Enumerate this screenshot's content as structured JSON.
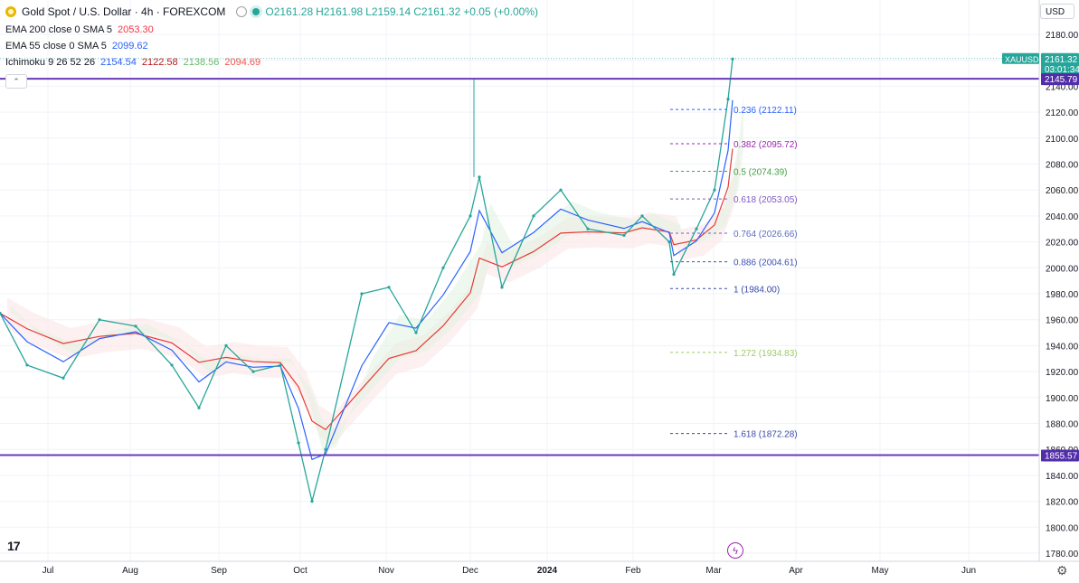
{
  "header": {
    "symbol": "Gold Spot / U.S. Dollar · 4h · FOREXCOM",
    "open": "O2161.28",
    "high": "H2161.98",
    "low": "L2159.14",
    "close": "C2161.32",
    "change": "+0.05 (+0.00%)",
    "currency": "USD"
  },
  "indicators": [
    {
      "label": "EMA 200 close 0 SMA 5",
      "values": [
        "2053.30"
      ],
      "color": "#f23645"
    },
    {
      "label": "EMA 55 close 0 SMA 5",
      "values": [
        "2099.62"
      ],
      "color": "#2962ff"
    },
    {
      "label": "Ichimoku 9 26 52 26",
      "values": [
        "2154.54",
        "2122.58",
        "2138.56",
        "2094.69"
      ],
      "colors": [
        "#2962ff",
        "#b71c1c",
        "#66bb6a",
        "#ef5350"
      ]
    }
  ],
  "price_axis": {
    "ticks": [
      "2180.00",
      "2160.00",
      "2140.00",
      "2120.00",
      "2100.00",
      "2080.00",
      "2060.00",
      "2040.00",
      "2020.00",
      "2000.00",
      "1980.00",
      "1960.00",
      "1940.00",
      "1920.00",
      "1900.00",
      "1880.00",
      "1860.00",
      "1840.00",
      "1820.00",
      "1800.00",
      "1780.00"
    ],
    "symbol_tag": "XAUUSD",
    "last_price": "2161.32",
    "countdown": "03:01:34",
    "upper_line_label": "2145.79",
    "lower_line_label": "1855.57"
  },
  "time_axis": [
    "Jul",
    "Aug",
    "Sep",
    "Oct",
    "Nov",
    "Dec",
    "2024",
    "Feb",
    "Mar",
    "Apr",
    "May",
    "Jun"
  ],
  "fib_levels": [
    {
      "label": "0.236 (2122.11)",
      "price": 2122.11,
      "color": "#2962ff"
    },
    {
      "label": "0.382 (2095.72)",
      "price": 2095.72,
      "color": "#9c27b0"
    },
    {
      "label": "0.5 (2074.39)",
      "price": 2074.39,
      "color": "#43a047"
    },
    {
      "label": "0.618 (2053.05)",
      "price": 2053.05,
      "color": "#7e57c2"
    },
    {
      "label": "0.764 (2026.66)",
      "price": 2026.66,
      "color": "#5c6bc0"
    },
    {
      "label": "0.886 (2004.61)",
      "price": 2004.61,
      "color": "#3f51b5"
    },
    {
      "label": "1 (1984.00)",
      "price": 1984.0,
      "color": "#3949ab"
    },
    {
      "label": "1.272 (1934.83)",
      "price": 1934.83,
      "color": "#9ccc65"
    },
    {
      "label": "1.618 (1872.28)",
      "price": 1872.28,
      "color": "#3949ab"
    }
  ],
  "horizontal_lines": [
    {
      "price": 2145.79,
      "color": "#673ab7"
    },
    {
      "price": 1855.57,
      "color": "#673ab7"
    }
  ],
  "chart_data": {
    "type": "line",
    "title": "Gold Spot / U.S. Dollar · 4h · FOREXCOM",
    "ylim": [
      1774,
      2188
    ],
    "x": [
      "Jun 20",
      "Jul 1",
      "Jul 10",
      "Jul 20",
      "Aug 1",
      "Aug 10",
      "Aug 20",
      "Sep 1",
      "Sep 10",
      "Sep 20",
      "Oct 1",
      "Oct 6",
      "Oct 10",
      "Oct 20",
      "Nov 1",
      "Nov 10",
      "Nov 20",
      "Dec 1",
      "Dec 5",
      "Dec 10",
      "Dec 20",
      "Jan 1",
      "Jan 10",
      "Jan 20",
      "Feb 1",
      "Feb 10",
      "Feb 15",
      "Feb 20",
      "Mar 1",
      "Mar 5",
      "Mar 8"
    ],
    "series": [
      {
        "values": [
          1965,
          1925,
          1915,
          1960,
          1955,
          1925,
          1892,
          1940,
          1920,
          1925,
          1865,
          1820,
          1860,
          1980,
          1985,
          1950,
          2000,
          2040,
          2070,
          1985,
          2040,
          2060,
          2030,
          2025,
          2040,
          2020,
          1995,
          2030,
          2060,
          2130,
          2161
        ]
      }
    ]
  }
}
